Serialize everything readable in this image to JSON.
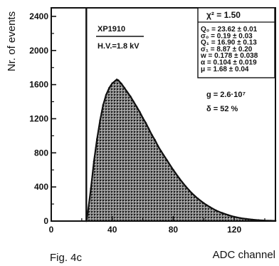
{
  "chart_data": {
    "type": "area",
    "title": "",
    "xlabel": "ADC channel",
    "ylabel": "Nr. of events",
    "xlim": [
      0,
      147
    ],
    "ylim": [
      0,
      2500
    ],
    "x_ticks": [
      0,
      40,
      80,
      120
    ],
    "x_tick_labels": [
      "0",
      "40",
      "80",
      "120"
    ],
    "y_ticks": [
      0,
      400,
      800,
      1200,
      1600,
      2000,
      2400
    ],
    "y_tick_labels": [
      "0",
      "400",
      "800",
      "1200",
      "1600",
      "2000",
      "2400"
    ],
    "pedestal": {
      "x": 23,
      "y_top": 2500
    },
    "series": [
      {
        "x": [
          23,
          24,
          26,
          28,
          30,
          32,
          34,
          36,
          38,
          40,
          42,
          43,
          44,
          46,
          48,
          50,
          52,
          54,
          56,
          58,
          60,
          62,
          64,
          66,
          68,
          70,
          72,
          76,
          80,
          84,
          88,
          92,
          96,
          100,
          104,
          108,
          112,
          116,
          120,
          124,
          128,
          132,
          136,
          140,
          144,
          147
        ],
        "y": [
          0,
          100,
          380,
          700,
          960,
          1180,
          1360,
          1480,
          1560,
          1615,
          1645,
          1660,
          1650,
          1610,
          1560,
          1510,
          1460,
          1400,
          1340,
          1280,
          1210,
          1150,
          1080,
          1010,
          950,
          880,
          820,
          710,
          600,
          500,
          410,
          330,
          265,
          210,
          165,
          125,
          95,
          70,
          50,
          35,
          25,
          17,
          11,
          7,
          4,
          3
        ]
      }
    ],
    "annotations": {
      "tube": "XP1910",
      "hv": "H.V.=1.8 kV",
      "gain": "g = 2.6·10⁷",
      "resolution": "δ = 52 %"
    },
    "fit_box": [
      "χ² = 1.50",
      "Q₀ = 23.62 ± 0.01",
      "σ₀ = 0.19 ± 0.03",
      "Q₁ = 16.90 ± 0.13",
      "σ₁ = 8.87 ± 0.20",
      "w = 0.178 ± 0.038",
      "α = 0.104 ± 0.019",
      "μ = 1.68 ± 0.04"
    ]
  },
  "caption": "Fig. 4c"
}
